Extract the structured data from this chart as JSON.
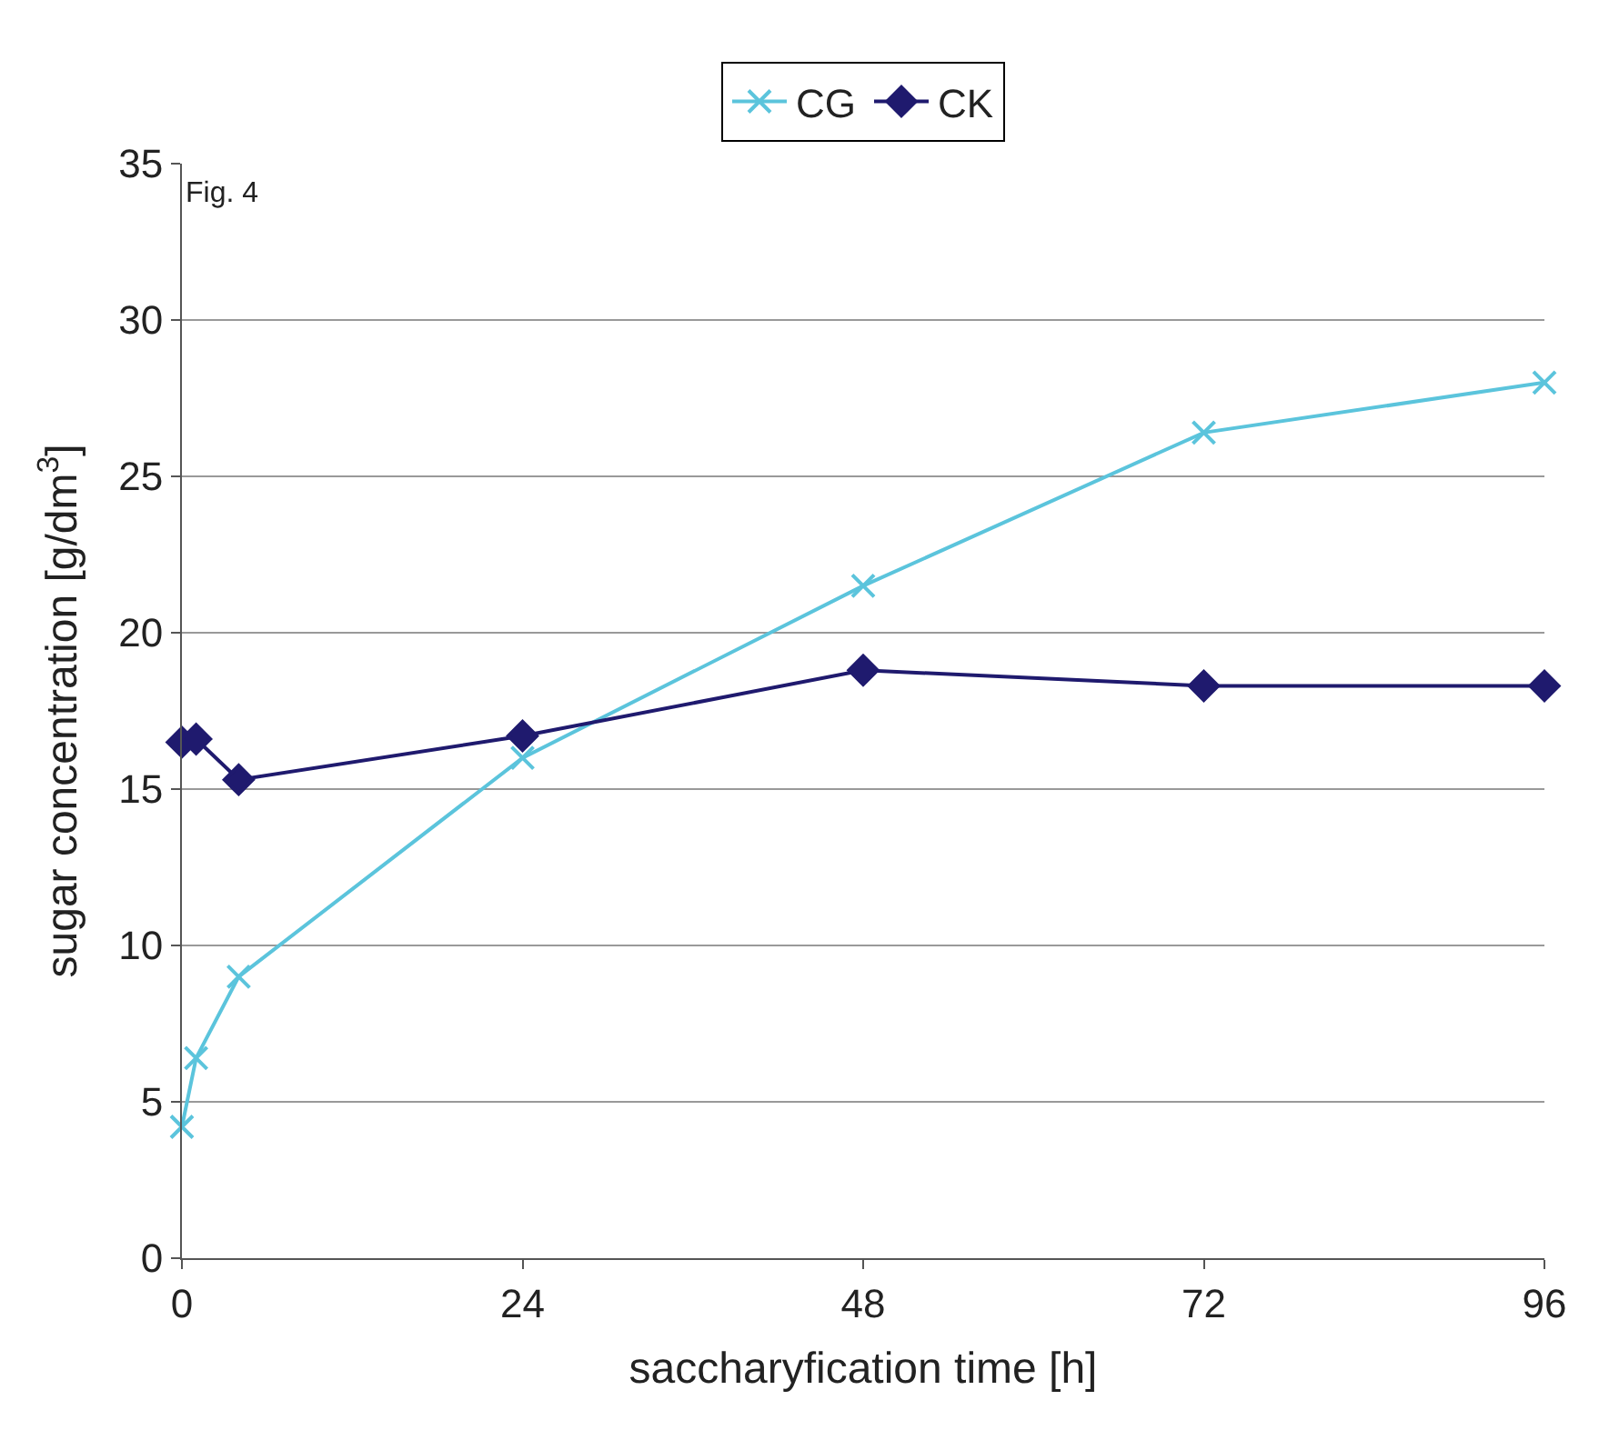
{
  "chart_data": {
    "type": "line",
    "annotations": [
      "Fig. 4"
    ],
    "xlabel": "saccharyfication time [h]",
    "ylabel": "sugar concentration [g/dm$^{3}$]",
    "x": [
      0,
      1,
      4,
      24,
      48,
      72,
      96
    ],
    "series": [
      {
        "name": "CG",
        "color": "#5bc4dc",
        "marker": "cross",
        "values": [
          4.2,
          6.4,
          9.0,
          16.0,
          21.5,
          26.4,
          28.0
        ]
      },
      {
        "name": "CK",
        "color": "#1f1a6e",
        "marker": "diamond",
        "values": [
          16.5,
          16.6,
          15.3,
          16.7,
          18.8,
          18.3,
          18.3
        ]
      }
    ],
    "xlim": [
      0,
      96
    ],
    "xticks": [
      0,
      24,
      48,
      72,
      96
    ],
    "ylim": [
      0,
      35
    ],
    "yticks": [
      0,
      5,
      10,
      15,
      20,
      25,
      30,
      35
    ],
    "grid": "y",
    "legend": "top"
  }
}
